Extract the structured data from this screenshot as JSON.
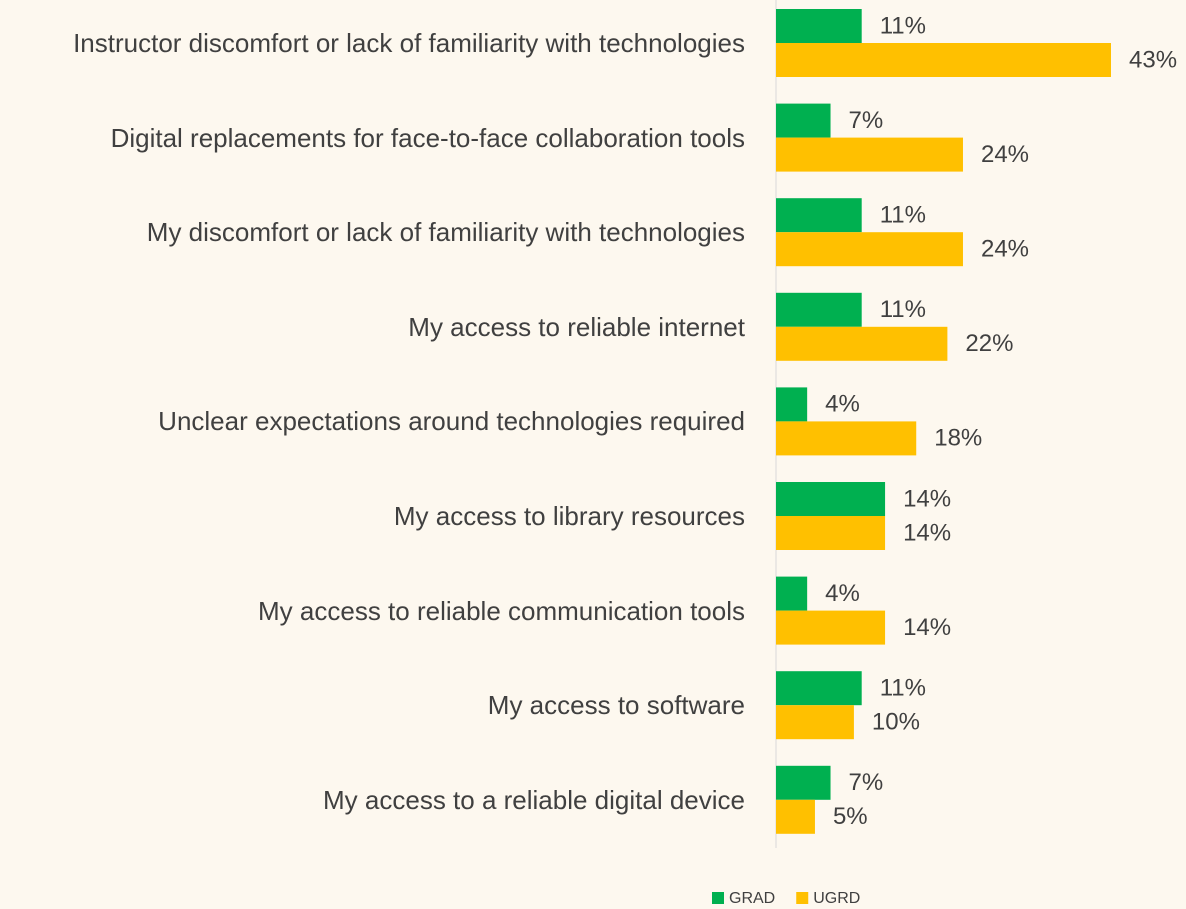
{
  "chart_data": {
    "type": "barh",
    "categories": [
      "Instructor discomfort or lack of familiarity with technologies",
      "Digital replacements for face-to-face collaboration tools",
      "My discomfort or lack of familiarity with technologies",
      "My access to reliable internet",
      "Unclear expectations around technologies required",
      "My access to library resources",
      "My access to reliable communication tools",
      "My access to  software",
      "My access to a reliable digital device"
    ],
    "series": [
      {
        "name": "GRAD",
        "color": "#00b050",
        "values": [
          11,
          7,
          11,
          11,
          4,
          14,
          4,
          11,
          7
        ],
        "value_labels": [
          "11%",
          "7%",
          "11%",
          "11%",
          "4%",
          "14%",
          "4%",
          "11%",
          "7%"
        ]
      },
      {
        "name": "UGRD",
        "color": "#ffc000",
        "values": [
          43,
          24,
          24,
          22,
          18,
          14,
          14,
          10,
          5
        ],
        "value_labels": [
          "43%",
          "24%",
          "24%",
          "22%",
          "18%",
          "14%",
          "14%",
          "10%",
          "5%"
        ]
      }
    ],
    "xlim": [
      0,
      43
    ],
    "legend": "bottom"
  }
}
